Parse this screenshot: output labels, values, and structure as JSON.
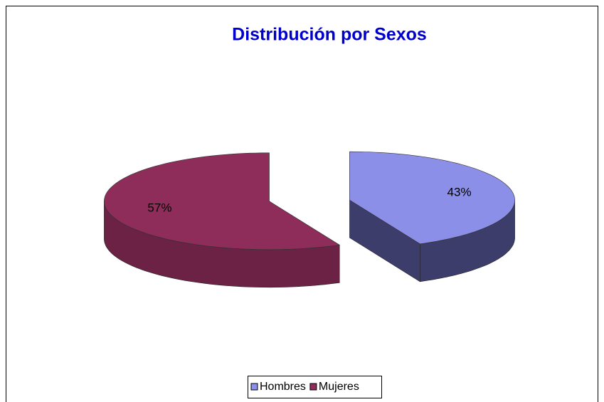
{
  "chart_data": {
    "type": "pie",
    "title": "Distribución por Sexos",
    "categories": [
      "Hombres",
      "Mujeres"
    ],
    "values": [
      43,
      57
    ],
    "value_labels": [
      "43%",
      "57%"
    ],
    "colors": [
      "#8b8fe8",
      "#8e2d5a"
    ],
    "side_colors": [
      "#3c3d6b",
      "#6b2244"
    ],
    "legend": "bottom"
  }
}
